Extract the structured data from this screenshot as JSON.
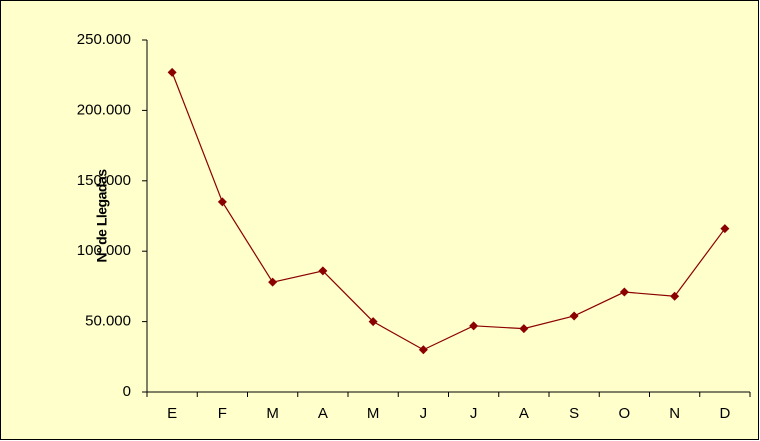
{
  "chart_data": {
    "type": "line",
    "y_label": "Nº de Llegadas",
    "categories": [
      "E",
      "F",
      "M",
      "A",
      "M",
      "J",
      "J",
      "A",
      "S",
      "O",
      "N",
      "D"
    ],
    "series": [
      {
        "color": "#8b0000",
        "values": [
          227000,
          135000,
          78000,
          86000,
          50000,
          30000,
          47000,
          45000,
          54000,
          71000,
          68000,
          116000
        ]
      }
    ],
    "ylim": [
      0,
      250000
    ],
    "yticks": [
      0,
      {
        "value": 50000,
        "label": "50.000"
      },
      {
        "value": 100000,
        "label": "100.000"
      },
      {
        "value": 150000,
        "label": "150.000"
      },
      {
        "value": 200000,
        "label": "200.000"
      },
      {
        "value": 250000,
        "label": "250.000"
      }
    ],
    "grid": false
  }
}
